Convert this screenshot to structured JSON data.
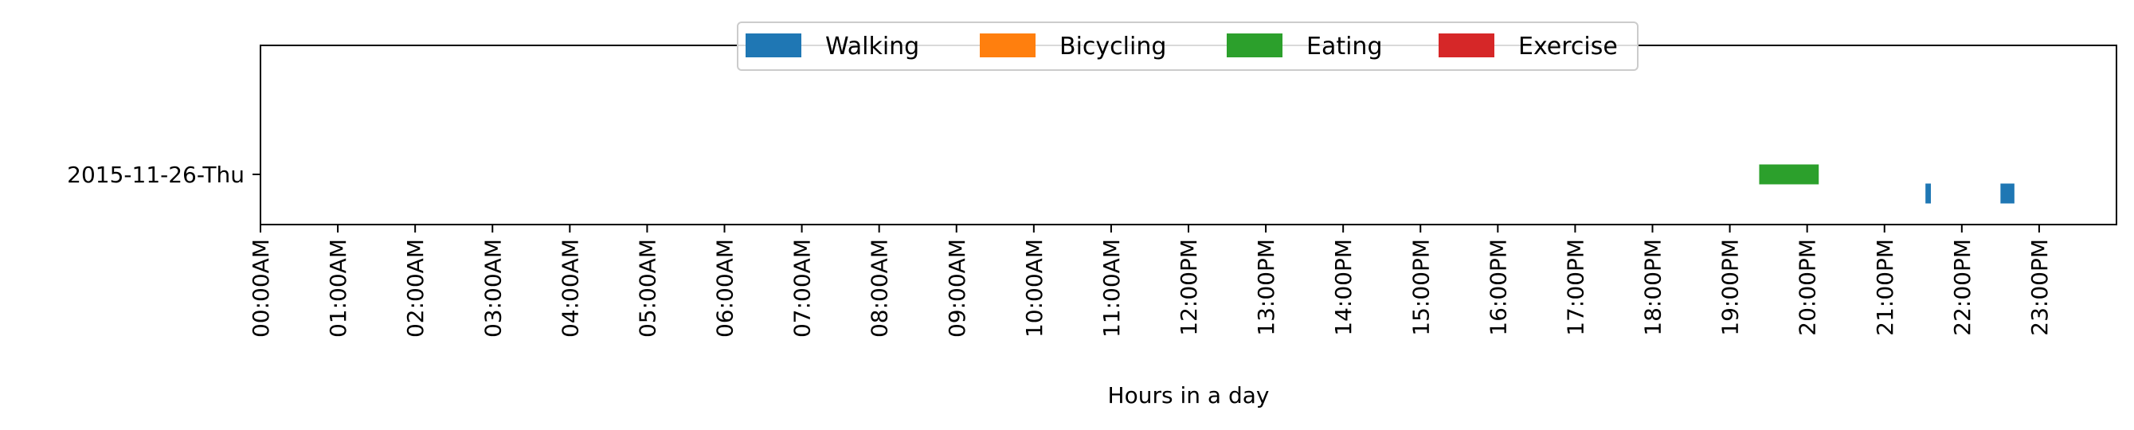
{
  "chart_data": {
    "type": "broken_barh",
    "title": "",
    "xlabel": "Hours in a day",
    "ylabel": "",
    "xlim": [
      0,
      24
    ],
    "x_ticks": [
      0,
      1,
      2,
      3,
      4,
      5,
      6,
      7,
      8,
      9,
      10,
      11,
      12,
      13,
      14,
      15,
      16,
      17,
      18,
      19,
      20,
      21,
      22,
      23
    ],
    "x_tick_labels": [
      "00:00AM",
      "01:00AM",
      "02:00AM",
      "03:00AM",
      "04:00AM",
      "05:00AM",
      "06:00AM",
      "07:00AM",
      "08:00AM",
      "09:00AM",
      "10:00AM",
      "11:00AM",
      "12:00PM",
      "13:00PM",
      "14:00PM",
      "15:00PM",
      "16:00PM",
      "17:00PM",
      "18:00PM",
      "19:00PM",
      "20:00PM",
      "21:00PM",
      "22:00PM",
      "23:00PM"
    ],
    "categories": [
      "2015-11-26-Thu"
    ],
    "legend_position": "top-center",
    "grid": false,
    "series": [
      {
        "name": "Walking",
        "color": "#1f77b4",
        "lane": -0.5,
        "segments": [
          [
            21.53,
            21.6
          ],
          [
            22.5,
            22.68
          ]
        ]
      },
      {
        "name": "Bicycling",
        "color": "#ff7f0e",
        "lane": 0.5,
        "segments": []
      },
      {
        "name": "Eating",
        "color": "#2ca02c",
        "lane": 0.0,
        "segments": [
          [
            19.38,
            20.15
          ]
        ]
      },
      {
        "name": "Exercise",
        "color": "#d62728",
        "lane": 1.0,
        "segments": []
      }
    ]
  }
}
